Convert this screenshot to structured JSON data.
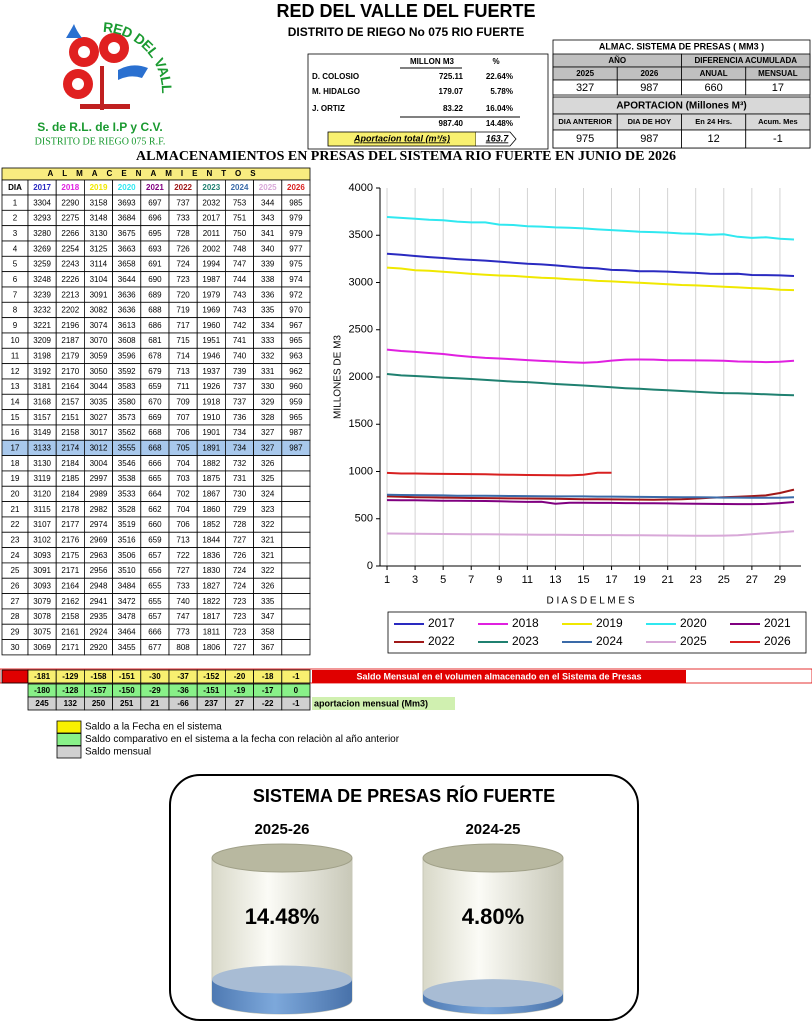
{
  "header": {
    "title": "RED DEL VALLE DEL FUERTE",
    "subtitle": "DISTRITO DE RIEGO No 075 RIO FUERTE",
    "logo": {
      "ring_text": "RED DEL VALLE DEL FUERTE",
      "line1": "S. de R.L. de I.P y C.V.",
      "line2": "DISTRITO DE RIEGO 075 R.F."
    }
  },
  "dams": {
    "headers": [
      "MILLON  M3",
      "%"
    ],
    "rows": [
      [
        "D. COLOSIO",
        "725.11",
        "22.64%"
      ],
      [
        "M. HIDALGO",
        "179.07",
        "5.78%"
      ],
      [
        "J. ORTIZ",
        "83.22",
        "16.04%"
      ]
    ],
    "total": [
      "987.40",
      "14.48%"
    ],
    "flow_label": "Aportacion total (m³/s)",
    "flow_value": "163.7"
  },
  "storage": {
    "title": "ALMAC. SISTEMA  DE  PRESAS  ( MM3 )",
    "year_header": "AÑO",
    "diff_header": "DIFERENCIA ACUMULADA",
    "columns": [
      "2025",
      "2026",
      "ANUAL",
      "MENSUAL"
    ],
    "values": [
      "327",
      "987",
      "660",
      "17"
    ],
    "inflow_title": "APORTACION (Millones M³)",
    "inflow_columns": [
      "DIA ANTERIOR",
      "DIA DE HOY",
      "En 24 Hrs.",
      "Acum. Mes"
    ],
    "inflow_values": [
      "975",
      "987",
      "12",
      "-1"
    ]
  },
  "main_title": "ALMACENAMIENTOS  EN  PRESAS  DEL  SISTEMA  RIO  FUERTE  EN  JUNIO  DE  2026",
  "table": {
    "title": "ALMACENAMIENTOS",
    "day_header": "DIA",
    "columns": [
      {
        "name": "2017",
        "color": "#2a2ac0"
      },
      {
        "name": "2018",
        "color": "#e020e0"
      },
      {
        "name": "2019",
        "color": "#f0e800"
      },
      {
        "name": "2020",
        "color": "#30e8f0"
      },
      {
        "name": "2021",
        "color": "#800080"
      },
      {
        "name": "2022",
        "color": "#a01818"
      },
      {
        "name": "2023",
        "color": "#1f8070"
      },
      {
        "name": "2024",
        "color": "#3a6aa8"
      },
      {
        "name": "2025",
        "color": "#d8a8d8"
      },
      {
        "name": "2026",
        "color": "#d82020"
      }
    ],
    "rows": [
      [
        1,
        3304,
        2290,
        3158,
        3693,
        697,
        737,
        2032,
        753,
        344,
        985
      ],
      [
        2,
        3293,
        2275,
        3148,
        3684,
        696,
        733,
        2017,
        751,
        343,
        979
      ],
      [
        3,
        3280,
        2266,
        3130,
        3675,
        695,
        728,
        2011,
        750,
        341,
        979
      ],
      [
        4,
        3269,
        2254,
        3125,
        3663,
        693,
        726,
        2002,
        748,
        340,
        977
      ],
      [
        5,
        3259,
        2243,
        3114,
        3658,
        691,
        724,
        1994,
        747,
        339,
        975
      ],
      [
        6,
        3248,
        2226,
        3104,
        3644,
        690,
        723,
        1987,
        744,
        338,
        974
      ],
      [
        7,
        3239,
        2213,
        3091,
        3636,
        689,
        720,
        1979,
        743,
        336,
        972
      ],
      [
        8,
        3232,
        2202,
        3082,
        3636,
        688,
        719,
        1969,
        743,
        335,
        970
      ],
      [
        9,
        3221,
        2196,
        3074,
        3613,
        686,
        717,
        1960,
        742,
        334,
        967
      ],
      [
        10,
        3209,
        2187,
        3070,
        3608,
        681,
        715,
        1951,
        741,
        333,
        965
      ],
      [
        11,
        3198,
        2179,
        3059,
        3596,
        678,
        714,
        1946,
        740,
        332,
        963
      ],
      [
        12,
        3192,
        2170,
        3050,
        3592,
        679,
        713,
        1937,
        739,
        331,
        962
      ],
      [
        13,
        3181,
        2164,
        3044,
        3583,
        659,
        711,
        1926,
        737,
        330,
        960
      ],
      [
        14,
        3168,
        2157,
        3035,
        3580,
        670,
        709,
        1918,
        737,
        329,
        959
      ],
      [
        15,
        3157,
        2151,
        3027,
        3573,
        669,
        707,
        1910,
        736,
        328,
        965
      ],
      [
        16,
        3149,
        2158,
        3017,
        3562,
        668,
        706,
        1901,
        734,
        327,
        987
      ],
      [
        17,
        3133,
        2174,
        3012,
        3555,
        668,
        705,
        1891,
        734,
        327,
        987
      ],
      [
        18,
        3130,
        2184,
        3004,
        3546,
        666,
        704,
        1882,
        732,
        326,
        null
      ],
      [
        19,
        3119,
        2185,
        2997,
        3538,
        665,
        703,
        1875,
        731,
        325,
        null
      ],
      [
        20,
        3120,
        2184,
        2989,
        3533,
        664,
        702,
        1867,
        730,
        324,
        null
      ],
      [
        21,
        3115,
        2178,
        2982,
        3528,
        662,
        704,
        1860,
        729,
        323,
        null
      ],
      [
        22,
        3107,
        2177,
        2974,
        3519,
        660,
        706,
        1852,
        728,
        322,
        null
      ],
      [
        23,
        3102,
        2176,
        2969,
        3516,
        659,
        713,
        1844,
        727,
        321,
        null
      ],
      [
        24,
        3093,
        2175,
        2963,
        3506,
        657,
        722,
        1836,
        726,
        321,
        null
      ],
      [
        25,
        3091,
        2171,
        2956,
        3510,
        656,
        727,
        1830,
        724,
        322,
        null
      ],
      [
        26,
        3093,
        2164,
        2948,
        3484,
        655,
        733,
        1827,
        724,
        326,
        null
      ],
      [
        27,
        3079,
        2162,
        2941,
        3472,
        655,
        740,
        1822,
        723,
        335,
        null
      ],
      [
        28,
        3078,
        2158,
        2935,
        3478,
        657,
        747,
        1817,
        723,
        347,
        null
      ],
      [
        29,
        3075,
        2161,
        2924,
        3464,
        666,
        773,
        1811,
        723,
        358,
        null
      ],
      [
        30,
        3069,
        2171,
        2920,
        3455,
        677,
        808,
        1806,
        727,
        367,
        null
      ]
    ]
  },
  "balances": [
    {
      "label": "Saldo Mensual en el volumen almacenado en el Sistema de Presas",
      "values": [
        -181,
        -129,
        -158,
        -151,
        -30,
        -37,
        -152,
        -20,
        -18,
        -1
      ]
    },
    {
      "values": [
        -180,
        -128,
        -157,
        -150,
        -29,
        -36,
        -151,
        -19,
        -17,
        0
      ]
    },
    {
      "label": "aportacion mensual (Mm3)",
      "values": [
        245,
        132,
        250,
        251,
        21,
        -66,
        237,
        27,
        -22,
        -1
      ]
    }
  ],
  "legend_notes": [
    "Saldo a la Fecha en el sistema",
    "Saldo comparativo en el sistema a la fecha con relaciòn al año anterior",
    "Saldo mensual"
  ],
  "chart": {
    "type": "line",
    "ylabel": "MILLONES  DE  M3",
    "xlabel": "D I A S   D E L   M E S",
    "xlim": [
      0.5,
      30.5
    ],
    "xticks": [
      1,
      3,
      5,
      7,
      9,
      11,
      13,
      15,
      17,
      19,
      21,
      23,
      25,
      27,
      29
    ],
    "ylim": [
      0,
      4000
    ],
    "yticks": [
      0,
      500,
      1000,
      1500,
      2000,
      2500,
      3000,
      3500,
      4000
    ],
    "grid": true
  },
  "gauges": {
    "title": "SISTEMA DE PRESAS RÍO FUERTE",
    "items": [
      {
        "label": "2025-26",
        "value": 14.48,
        "value_label": "14.48%"
      },
      {
        "label": "2024-25",
        "value": 4.8,
        "value_label": "4.80%"
      }
    ]
  }
}
